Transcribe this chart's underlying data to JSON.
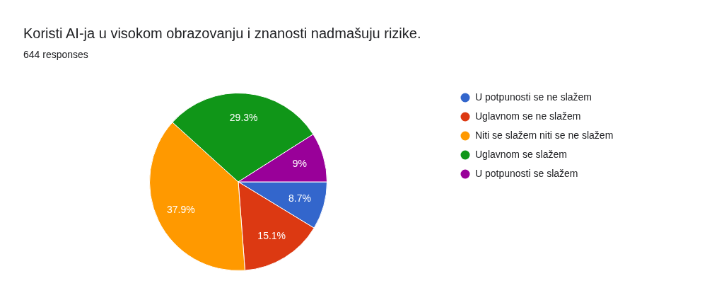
{
  "chart_data": {
    "type": "pie",
    "title": "Koristi AI-ja u visokom obrazovanju i znanosti nadmašuju rizike.",
    "subtitle": "644 responses",
    "categories": [
      "U potpunosti se ne slažem",
      "Uglavnom se ne slažem",
      "Niti se slažem niti se ne slažem",
      "Uglavnom se slažem",
      "U potpunosti se slažem"
    ],
    "values": [
      8.7,
      15.1,
      37.9,
      29.3,
      9
    ],
    "value_labels": [
      "8.7%",
      "15.1%",
      "37.9%",
      "29.3%",
      "9%"
    ],
    "colors": [
      "#3366cc",
      "#dc3912",
      "#ff9900",
      "#109618",
      "#990099"
    ],
    "legend": "right"
  }
}
